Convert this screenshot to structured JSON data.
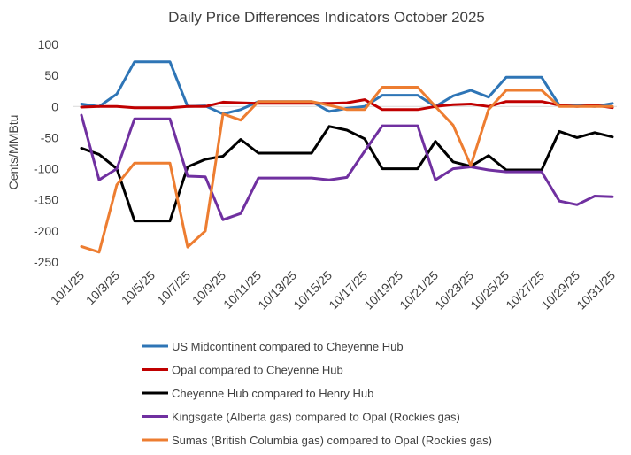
{
  "chart_data": {
    "type": "line",
    "title": "Daily Price Differences Indicators October 2025",
    "xlabel": "",
    "ylabel": "Cents/MMBtu",
    "ylim": [
      -250,
      100
    ],
    "yticks": [
      100,
      50,
      0,
      -50,
      -100,
      -150,
      -200,
      -250
    ],
    "grid": false,
    "legend_position": "bottom",
    "x": [
      "10/1/25",
      "10/2/25",
      "10/3/25",
      "10/4/25",
      "10/5/25",
      "10/6/25",
      "10/7/25",
      "10/8/25",
      "10/9/25",
      "10/10/25",
      "10/11/25",
      "10/12/25",
      "10/13/25",
      "10/14/25",
      "10/15/25",
      "10/16/25",
      "10/17/25",
      "10/18/25",
      "10/19/25",
      "10/20/25",
      "10/21/25",
      "10/22/25",
      "10/23/25",
      "10/24/25",
      "10/25/25",
      "10/26/25",
      "10/27/25",
      "10/28/25",
      "10/29/25",
      "10/30/25",
      "10/31/25"
    ],
    "x_tick_labels": [
      "10/1/25",
      "10/3/25",
      "10/5/25",
      "10/7/25",
      "10/9/25",
      "10/11/25",
      "10/13/25",
      "10/15/25",
      "10/17/25",
      "10/19/25",
      "10/21/25",
      "10/23/25",
      "10/25/25",
      "10/27/25",
      "10/29/25",
      "10/31/25"
    ],
    "series": [
      {
        "name": "US Midcontinent compared to Cheyenne Hub",
        "color": "#2E75B6",
        "values": [
          4,
          0,
          20,
          72,
          72,
          72,
          0,
          1,
          -12,
          -5,
          8,
          8,
          8,
          8,
          -8,
          -3,
          0,
          18,
          18,
          18,
          0,
          17,
          26,
          15,
          47,
          47,
          47,
          2,
          2,
          0,
          5
        ]
      },
      {
        "name": "Opal compared to Cheyenne Hub",
        "color": "#C00000",
        "values": [
          -1,
          0,
          0,
          -2,
          -2,
          -2,
          0,
          0,
          7,
          6,
          5,
          5,
          5,
          5,
          5,
          6,
          11,
          -5,
          -5,
          -5,
          0,
          3,
          4,
          0,
          8,
          8,
          8,
          2,
          0,
          2,
          -2
        ]
      },
      {
        "name": "Cheyenne Hub compared to Henry Hub",
        "color": "#000000",
        "values": [
          -67,
          -77,
          -100,
          -184,
          -184,
          -184,
          -97,
          -85,
          -80,
          -53,
          -75,
          -75,
          -75,
          -75,
          -32,
          -38,
          -52,
          -100,
          -100,
          -100,
          -56,
          -89,
          -96,
          -79,
          -102,
          -102,
          -102,
          -40,
          -50,
          -42,
          -49
        ]
      },
      {
        "name": "Kingsgate (Alberta gas) compared to Opal (Rockies gas)",
        "color": "#7030A0",
        "values": [
          -14,
          -118,
          -100,
          -20,
          -20,
          -20,
          -112,
          -113,
          -182,
          -172,
          -115,
          -115,
          -115,
          -115,
          -118,
          -114,
          -72,
          -31,
          -31,
          -31,
          -118,
          -100,
          -97,
          -102,
          -105,
          -105,
          -105,
          -152,
          -158,
          -144,
          -145
        ]
      },
      {
        "name": "Sumas (British Columbia gas) compared to Opal (Rockies gas)",
        "color": "#ED7D31",
        "values": [
          -225,
          -234,
          -126,
          -91,
          -91,
          -91,
          -226,
          -200,
          -12,
          -22,
          8,
          8,
          8,
          8,
          2,
          -5,
          -5,
          31,
          31,
          31,
          0,
          -30,
          -95,
          -5,
          26,
          26,
          26,
          0,
          0,
          0,
          0
        ]
      }
    ]
  }
}
